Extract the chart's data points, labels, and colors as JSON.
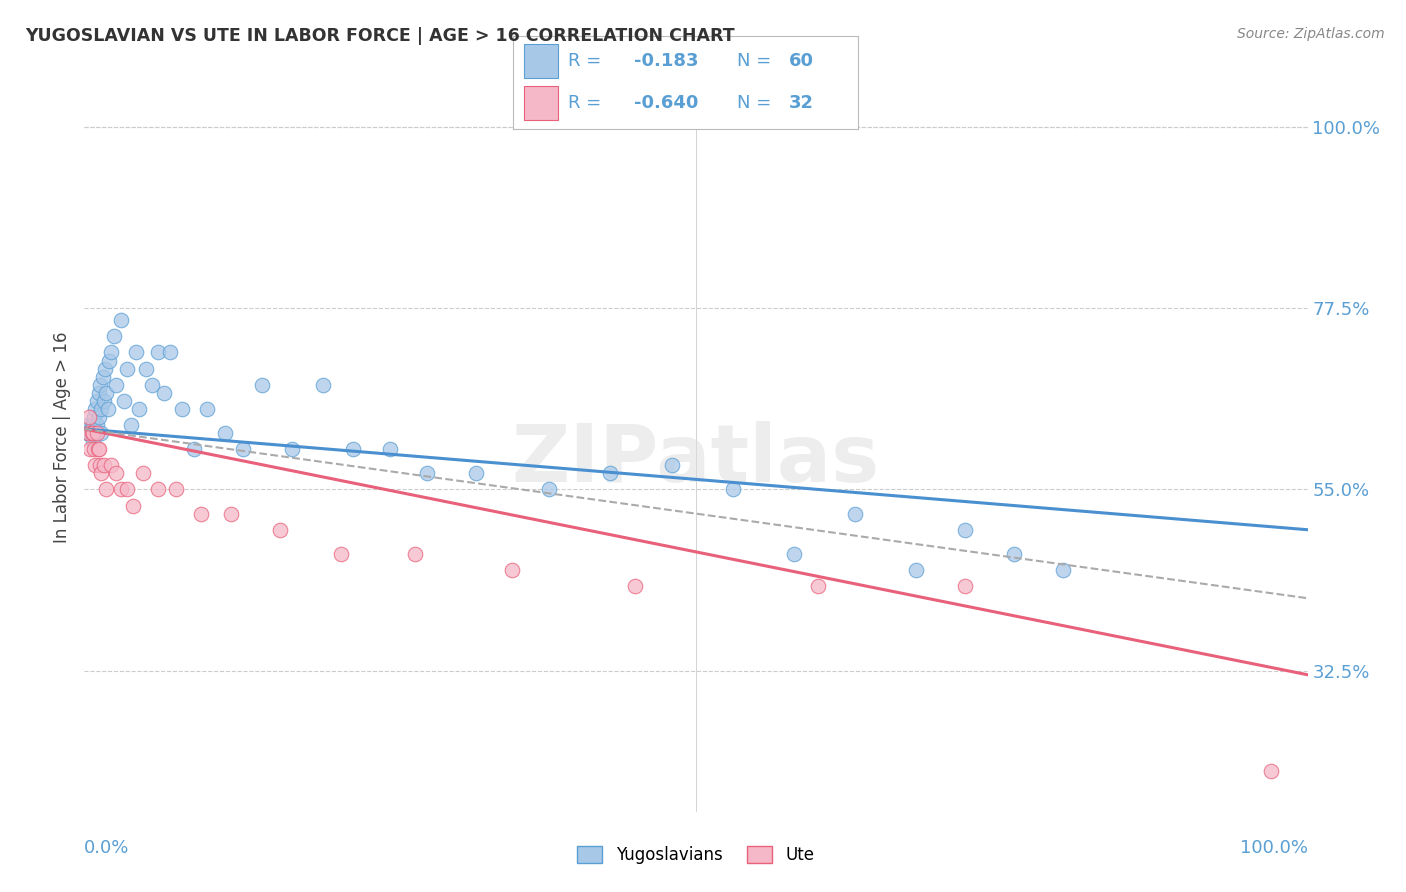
{
  "title": "YUGOSLAVIAN VS UTE IN LABOR FORCE | AGE > 16 CORRELATION CHART",
  "source": "Source: ZipAtlas.com",
  "ylabel": "In Labor Force | Age > 16",
  "ytick_labels": [
    "100.0%",
    "77.5%",
    "55.0%",
    "32.5%"
  ],
  "ytick_values": [
    1.0,
    0.775,
    0.55,
    0.325
  ],
  "xlim": [
    0.0,
    1.0
  ],
  "ylim": [
    0.15,
    1.08
  ],
  "legend_r_label": "R = ",
  "legend_n_label": "N = ",
  "legend_blue_r": "-0.183",
  "legend_blue_n": "60",
  "legend_pink_r": "-0.640",
  "legend_pink_n": "32",
  "blue_scatter_color": "#a8c8e8",
  "blue_edge_color": "#5a9fd4",
  "pink_scatter_color": "#f5b8c8",
  "pink_edge_color": "#e8607a",
  "trend_blue_color": "#4a90d0",
  "trend_pink_color": "#e8607a",
  "trend_dash_color": "#aaaaaa",
  "label_color": "#5a9fd4",
  "watermark_color": "#dddddd",
  "watermark": "ZIPatlas",
  "background_color": "#ffffff",
  "grid_color": "#cccccc",
  "blue_trend_y_start": 0.625,
  "blue_trend_y_end": 0.5,
  "pink_trend_y_start": 0.625,
  "pink_trend_y_end": 0.32,
  "dash_trend_y_start": 0.625,
  "dash_trend_y_end": 0.415,
  "blue_points_x": [
    0.002,
    0.003,
    0.004,
    0.005,
    0.006,
    0.007,
    0.007,
    0.008,
    0.008,
    0.009,
    0.009,
    0.01,
    0.01,
    0.012,
    0.012,
    0.013,
    0.014,
    0.014,
    0.015,
    0.016,
    0.017,
    0.018,
    0.019,
    0.02,
    0.022,
    0.024,
    0.026,
    0.03,
    0.032,
    0.035,
    0.038,
    0.042,
    0.045,
    0.05,
    0.055,
    0.06,
    0.065,
    0.07,
    0.08,
    0.09,
    0.1,
    0.115,
    0.13,
    0.145,
    0.17,
    0.195,
    0.22,
    0.25,
    0.28,
    0.32,
    0.38,
    0.43,
    0.48,
    0.53,
    0.58,
    0.63,
    0.68,
    0.72,
    0.76,
    0.8
  ],
  "blue_points_y": [
    0.62,
    0.63,
    0.62,
    0.62,
    0.63,
    0.63,
    0.61,
    0.64,
    0.62,
    0.65,
    0.62,
    0.66,
    0.63,
    0.67,
    0.64,
    0.68,
    0.65,
    0.62,
    0.69,
    0.66,
    0.7,
    0.67,
    0.65,
    0.71,
    0.72,
    0.74,
    0.68,
    0.76,
    0.66,
    0.7,
    0.63,
    0.72,
    0.65,
    0.7,
    0.68,
    0.72,
    0.67,
    0.72,
    0.65,
    0.6,
    0.65,
    0.62,
    0.6,
    0.68,
    0.6,
    0.68,
    0.6,
    0.6,
    0.57,
    0.57,
    0.55,
    0.57,
    0.58,
    0.55,
    0.47,
    0.52,
    0.45,
    0.5,
    0.47,
    0.45
  ],
  "pink_points_x": [
    0.003,
    0.004,
    0.005,
    0.006,
    0.007,
    0.008,
    0.009,
    0.01,
    0.011,
    0.012,
    0.013,
    0.014,
    0.016,
    0.018,
    0.022,
    0.026,
    0.03,
    0.035,
    0.04,
    0.048,
    0.06,
    0.075,
    0.095,
    0.12,
    0.16,
    0.21,
    0.27,
    0.35,
    0.45,
    0.6,
    0.72,
    0.97
  ],
  "pink_points_y": [
    0.62,
    0.64,
    0.6,
    0.62,
    0.62,
    0.6,
    0.58,
    0.62,
    0.6,
    0.6,
    0.58,
    0.57,
    0.58,
    0.55,
    0.58,
    0.57,
    0.55,
    0.55,
    0.53,
    0.57,
    0.55,
    0.55,
    0.52,
    0.52,
    0.5,
    0.47,
    0.47,
    0.45,
    0.43,
    0.43,
    0.43,
    0.2
  ]
}
